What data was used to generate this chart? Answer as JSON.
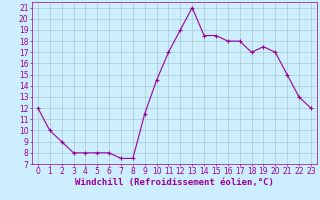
{
  "x": [
    0,
    1,
    2,
    3,
    4,
    5,
    6,
    7,
    8,
    9,
    10,
    11,
    12,
    13,
    14,
    15,
    16,
    17,
    18,
    19,
    20,
    21,
    22,
    23
  ],
  "y": [
    12,
    10,
    9,
    8,
    8,
    8,
    8,
    7.5,
    7.5,
    11.5,
    14.5,
    17,
    19,
    21,
    18.5,
    18.5,
    18,
    18,
    17,
    17.5,
    17,
    15,
    13,
    12
  ],
  "line_color": "#990099",
  "marker": "+",
  "bg_color": "#cceeff",
  "grid_color": "#aacccc",
  "xlabel": "Windchill (Refroidissement éolien,°C)",
  "xlabel_color": "#990099",
  "tick_color": "#990099",
  "spine_color": "#990099",
  "xlim": [
    -0.5,
    23.5
  ],
  "ylim": [
    7,
    21.5
  ],
  "yticks": [
    7,
    8,
    9,
    10,
    11,
    12,
    13,
    14,
    15,
    16,
    17,
    18,
    19,
    20,
    21
  ],
  "xticks": [
    0,
    1,
    2,
    3,
    4,
    5,
    6,
    7,
    8,
    9,
    10,
    11,
    12,
    13,
    14,
    15,
    16,
    17,
    18,
    19,
    20,
    21,
    22,
    23
  ],
  "tick_fontsize": 5.5,
  "xlabel_fontsize": 6.5,
  "line_width": 0.8,
  "marker_size": 3,
  "marker_edge_width": 0.8
}
